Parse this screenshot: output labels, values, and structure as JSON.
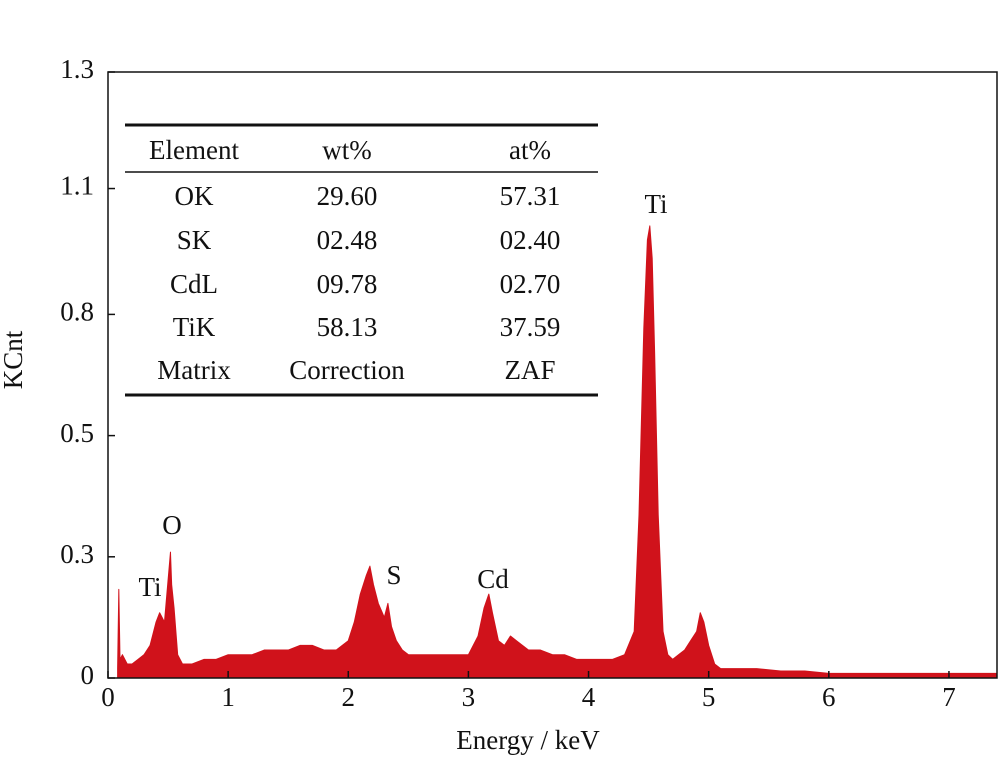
{
  "chart_data": {
    "type": "area",
    "color": "#d0121b",
    "xlabel": "Energy / keV",
    "ylabel": "KCnt",
    "xlim": [
      0,
      7.4
    ],
    "xticks": [
      0,
      1,
      2,
      3,
      4,
      5,
      6,
      7
    ],
    "ylim": [
      0,
      1.3
    ],
    "yticks": [
      0,
      {
        "value": 0.26,
        "label": "0.3"
      },
      {
        "value": 0.52,
        "label": "0.5"
      },
      {
        "value": 0.78,
        "label": "0.8"
      },
      {
        "value": 1.05,
        "label": "1.1"
      },
      1.3
    ],
    "x": [
      0.08,
      0.09,
      0.1,
      0.12,
      0.16,
      0.2,
      0.25,
      0.3,
      0.35,
      0.4,
      0.43,
      0.45,
      0.47,
      0.49,
      0.51,
      0.52,
      0.53,
      0.55,
      0.58,
      0.62,
      0.7,
      0.8,
      0.9,
      1.0,
      1.1,
      1.2,
      1.3,
      1.4,
      1.5,
      1.6,
      1.7,
      1.8,
      1.9,
      2.0,
      2.05,
      2.1,
      2.15,
      2.18,
      2.21,
      2.25,
      2.3,
      2.33,
      2.36,
      2.4,
      2.45,
      2.5,
      2.6,
      2.7,
      2.8,
      2.9,
      3.0,
      3.08,
      3.13,
      3.17,
      3.2,
      3.25,
      3.3,
      3.35,
      3.4,
      3.45,
      3.5,
      3.6,
      3.7,
      3.8,
      3.9,
      4.0,
      4.1,
      4.2,
      4.3,
      4.38,
      4.42,
      4.46,
      4.49,
      4.51,
      4.53,
      4.55,
      4.58,
      4.62,
      4.66,
      4.7,
      4.75,
      4.8,
      4.85,
      4.9,
      4.93,
      4.96,
      5.0,
      5.05,
      5.1,
      5.2,
      5.4,
      5.6,
      5.8,
      6.0,
      6.2,
      6.4,
      6.6,
      6.8,
      7.0,
      7.2,
      7.4
    ],
    "values": [
      0.02,
      0.19,
      0.04,
      0.05,
      0.03,
      0.03,
      0.04,
      0.05,
      0.07,
      0.12,
      0.14,
      0.13,
      0.12,
      0.18,
      0.24,
      0.27,
      0.2,
      0.15,
      0.05,
      0.03,
      0.03,
      0.04,
      0.04,
      0.05,
      0.05,
      0.05,
      0.06,
      0.06,
      0.06,
      0.07,
      0.07,
      0.06,
      0.06,
      0.08,
      0.12,
      0.18,
      0.22,
      0.24,
      0.2,
      0.16,
      0.13,
      0.16,
      0.11,
      0.08,
      0.06,
      0.05,
      0.05,
      0.05,
      0.05,
      0.05,
      0.05,
      0.09,
      0.15,
      0.18,
      0.14,
      0.08,
      0.07,
      0.09,
      0.08,
      0.07,
      0.06,
      0.06,
      0.05,
      0.05,
      0.04,
      0.04,
      0.04,
      0.04,
      0.05,
      0.1,
      0.35,
      0.75,
      0.94,
      0.97,
      0.9,
      0.7,
      0.35,
      0.1,
      0.05,
      0.04,
      0.05,
      0.06,
      0.08,
      0.1,
      0.14,
      0.12,
      0.07,
      0.03,
      0.02,
      0.02,
      0.02,
      0.015,
      0.015,
      0.01,
      0.01,
      0.01,
      0.01,
      0.01,
      0.01,
      0.01,
      0.01
    ],
    "annotations": [
      "Ti",
      "O",
      "S",
      "Cd",
      "Ti"
    ]
  },
  "table": {
    "header": [
      "Element",
      "wt%",
      "at%"
    ],
    "rows": [
      [
        "OK",
        "29.60",
        "57.31"
      ],
      [
        "SK",
        "02.48",
        "02.40"
      ],
      [
        "CdL",
        "09.78",
        "02.70"
      ],
      [
        "TiK",
        "58.13",
        "37.59"
      ],
      [
        "Matrix",
        "Correction",
        "ZAF"
      ]
    ]
  }
}
